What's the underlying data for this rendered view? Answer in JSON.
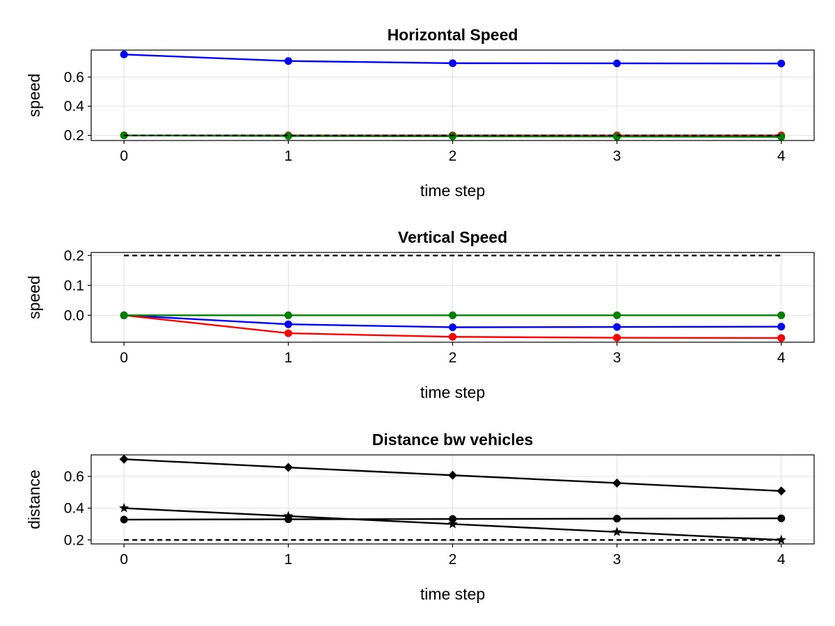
{
  "chart_data": [
    {
      "type": "line",
      "title": "Horizontal Speed",
      "xlabel": "time step",
      "ylabel": "speed",
      "xlim": [
        -0.2,
        4.2
      ],
      "ylim": [
        0.165,
        0.785
      ],
      "x_ticks": [
        0,
        1,
        2,
        3,
        4
      ],
      "y_ticks": [
        0.2,
        0.4,
        0.6
      ],
      "x_tick_labels": [
        "0",
        "1",
        "2",
        "3",
        "4"
      ],
      "y_tick_labels": [
        "0.2",
        "0.4",
        "0.6"
      ],
      "grid": true,
      "x": [
        0,
        1,
        2,
        3,
        4
      ],
      "series": [
        {
          "color": "#0000ff",
          "marker": "circle",
          "values": [
            0.755,
            0.71,
            0.695,
            0.694,
            0.693
          ]
        },
        {
          "color": "#ff0000",
          "marker": "circle",
          "values": [
            0.2,
            0.2,
            0.2,
            0.2,
            0.2
          ]
        },
        {
          "color": "#008000",
          "marker": "circle",
          "values": [
            0.2,
            0.196,
            0.194,
            0.192,
            0.19
          ]
        },
        {
          "color": "#000000",
          "marker": "none",
          "dashed": true,
          "values": [
            0.2,
            0.2,
            0.2,
            0.2,
            0.2
          ]
        }
      ]
    },
    {
      "type": "line",
      "title": "Vertical Speed",
      "xlabel": "time step",
      "ylabel": "speed",
      "xlim": [
        -0.2,
        4.2
      ],
      "ylim": [
        -0.09,
        0.21
      ],
      "x_ticks": [
        0,
        1,
        2,
        3,
        4
      ],
      "y_ticks": [
        0.0,
        0.1,
        0.2
      ],
      "x_tick_labels": [
        "0",
        "1",
        "2",
        "3",
        "4"
      ],
      "y_tick_labels": [
        "0.0",
        "0.1",
        "0.2"
      ],
      "grid": true,
      "x": [
        0,
        1,
        2,
        3,
        4
      ],
      "series": [
        {
          "color": "#000000",
          "marker": "none",
          "dashed": true,
          "values": [
            0.2,
            0.2,
            0.2,
            0.2,
            0.2
          ]
        },
        {
          "color": "#0000ff",
          "marker": "circle",
          "values": [
            0.0,
            -0.03,
            -0.04,
            -0.039,
            -0.038
          ]
        },
        {
          "color": "#ff0000",
          "marker": "circle",
          "values": [
            0.0,
            -0.06,
            -0.072,
            -0.075,
            -0.076
          ]
        },
        {
          "color": "#008000",
          "marker": "circle",
          "values": [
            0.0,
            0.0,
            0.0,
            0.0,
            0.0
          ]
        }
      ]
    },
    {
      "type": "line",
      "title": "Distance bw vehicles",
      "xlabel": "time step",
      "ylabel": "distance",
      "xlim": [
        -0.2,
        4.2
      ],
      "ylim": [
        0.175,
        0.735
      ],
      "x_ticks": [
        0,
        1,
        2,
        3,
        4
      ],
      "y_ticks": [
        0.2,
        0.4,
        0.6
      ],
      "x_tick_labels": [
        "0",
        "1",
        "2",
        "3",
        "4"
      ],
      "y_tick_labels": [
        "0.2",
        "0.4",
        "0.6"
      ],
      "grid": true,
      "x": [
        0,
        1,
        2,
        3,
        4
      ],
      "series": [
        {
          "color": "#000000",
          "marker": "diamond",
          "values": [
            0.708,
            0.656,
            0.607,
            0.558,
            0.508
          ]
        },
        {
          "color": "#000000",
          "marker": "star",
          "values": [
            0.4,
            0.35,
            0.3,
            0.25,
            0.2
          ]
        },
        {
          "color": "#000000",
          "marker": "circle",
          "values": [
            0.328,
            0.33,
            0.332,
            0.334,
            0.336
          ]
        },
        {
          "color": "#000000",
          "marker": "none",
          "dashed": true,
          "values": [
            0.2,
            0.2,
            0.2,
            0.2,
            0.2
          ]
        }
      ]
    }
  ]
}
